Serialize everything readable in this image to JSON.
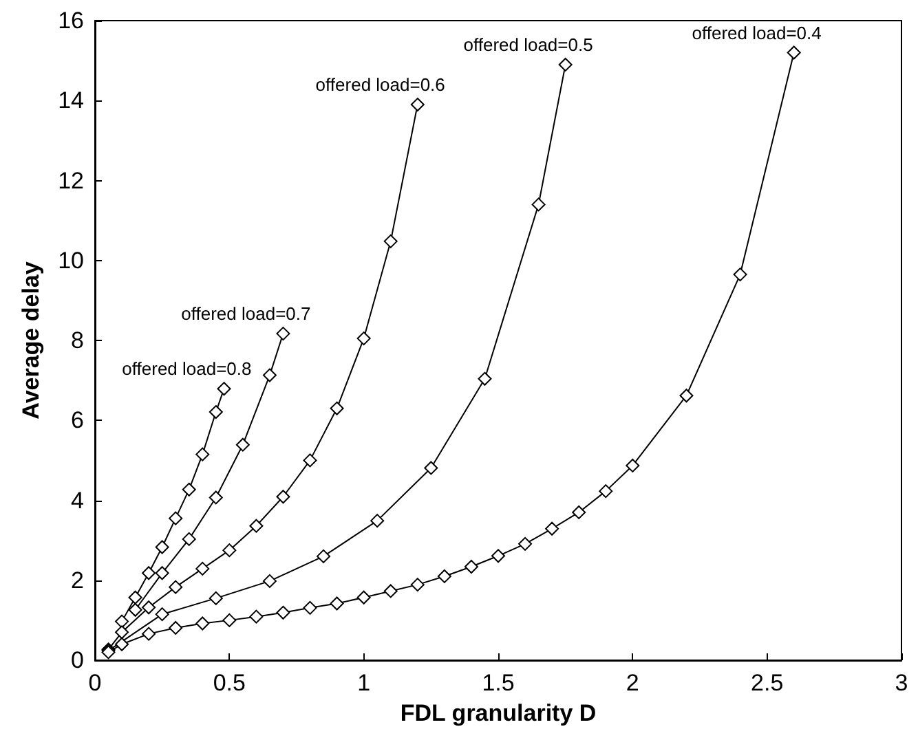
{
  "chart_data": {
    "type": "line",
    "xlabel": "FDL granularity D",
    "ylabel": "Average delay",
    "marker": "diamond",
    "grid": false,
    "legend": false,
    "xlim": [
      0,
      3
    ],
    "xticks": [
      0,
      0.5,
      1,
      1.5,
      2,
      2.5,
      3
    ],
    "ylim": [
      0,
      16
    ],
    "yticks": [
      0,
      2,
      4,
      6,
      8,
      10,
      12,
      14,
      16
    ],
    "series": [
      {
        "name": "offered load=0.8",
        "color": "#000000",
        "x": [
          0.1,
          0.15,
          0.2,
          0.25,
          0.3,
          0.35,
          0.4,
          0.45,
          0.48
        ],
        "values": [
          0.97,
          1.57,
          2.18,
          2.83,
          3.55,
          4.27,
          5.15,
          6.21,
          6.79
        ]
      },
      {
        "name": "offered load=0.7",
        "color": "#000000",
        "x": [
          0.15,
          0.25,
          0.35,
          0.45,
          0.55,
          0.65,
          0.7
        ],
        "values": [
          1.26,
          2.18,
          3.03,
          4.07,
          5.39,
          7.13,
          8.17
        ]
      },
      {
        "name": "offered load=0.6",
        "color": "#000000",
        "x": [
          0.05,
          0.1,
          0.2,
          0.3,
          0.4,
          0.5,
          0.6,
          0.7,
          0.8,
          0.9,
          1.0,
          1.1,
          1.2
        ],
        "values": [
          0.27,
          0.7,
          1.32,
          1.83,
          2.29,
          2.75,
          3.36,
          4.09,
          5.0,
          6.3,
          8.05,
          10.48,
          13.9
        ]
      },
      {
        "name": "offered load=0.5",
        "color": "#000000",
        "x": [
          0.05,
          0.25,
          0.45,
          0.65,
          0.85,
          1.05,
          1.25,
          1.45,
          1.65,
          1.75
        ],
        "values": [
          0.24,
          1.15,
          1.55,
          1.98,
          2.6,
          3.49,
          4.81,
          7.04,
          11.4,
          14.9
        ]
      },
      {
        "name": "offered load=0.4",
        "color": "#000000",
        "x": [
          0.05,
          0.1,
          0.2,
          0.3,
          0.4,
          0.5,
          0.6,
          0.7,
          0.8,
          0.9,
          1.0,
          1.1,
          1.2,
          1.3,
          1.4,
          1.5,
          1.6,
          1.7,
          1.8,
          1.9,
          2.0,
          2.2,
          2.4,
          2.6
        ],
        "values": [
          0.2,
          0.4,
          0.66,
          0.81,
          0.92,
          1.0,
          1.09,
          1.19,
          1.31,
          1.42,
          1.57,
          1.73,
          1.89,
          2.1,
          2.34,
          2.61,
          2.91,
          3.29,
          3.7,
          4.23,
          4.87,
          6.62,
          9.65,
          15.2
        ]
      }
    ]
  }
}
